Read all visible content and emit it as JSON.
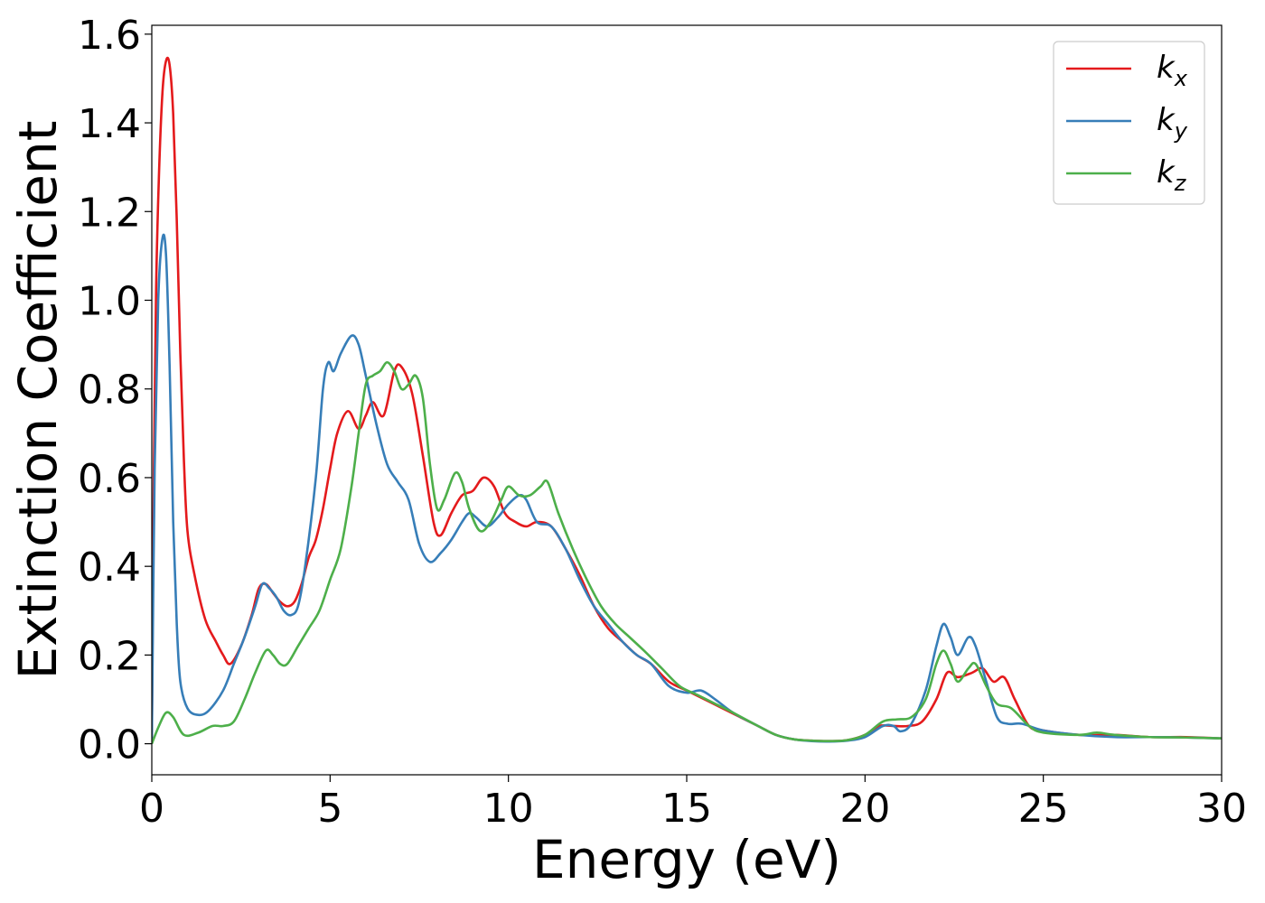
{
  "chart_data": {
    "type": "line",
    "title": "",
    "xlabel": "Energy (eV)",
    "ylabel": "Extinction Coefficient",
    "xlim": [
      0,
      30
    ],
    "ylim": [
      -0.07,
      1.62
    ],
    "x_ticks": [
      "0",
      "5",
      "10",
      "15",
      "20",
      "25",
      "30"
    ],
    "x_tick_values": [
      0,
      5,
      10,
      15,
      20,
      25,
      30
    ],
    "y_ticks": [
      "0.0",
      "0.2",
      "0.4",
      "0.6",
      "0.8",
      "1.0",
      "1.2",
      "1.4",
      "1.6"
    ],
    "y_tick_values": [
      0.0,
      0.2,
      0.4,
      0.6,
      0.8,
      1.0,
      1.2,
      1.4,
      1.6
    ],
    "grid": false,
    "legend_position": "top-right",
    "series": [
      {
        "name": "kx",
        "base": "k",
        "sub": "x",
        "color": "#e41a1c",
        "points": [
          [
            0,
            0
          ],
          [
            0.05,
            0.55
          ],
          [
            0.12,
            1.02
          ],
          [
            0.2,
            1.28
          ],
          [
            0.3,
            1.47
          ],
          [
            0.4,
            1.54
          ],
          [
            0.5,
            1.53
          ],
          [
            0.6,
            1.42
          ],
          [
            0.7,
            1.18
          ],
          [
            0.8,
            0.88
          ],
          [
            0.9,
            0.64
          ],
          [
            1.0,
            0.48
          ],
          [
            1.2,
            0.38
          ],
          [
            1.5,
            0.28
          ],
          [
            1.8,
            0.23
          ],
          [
            2.0,
            0.2
          ],
          [
            2.2,
            0.18
          ],
          [
            2.5,
            0.22
          ],
          [
            2.8,
            0.29
          ],
          [
            3.0,
            0.35
          ],
          [
            3.2,
            0.36
          ],
          [
            3.4,
            0.34
          ],
          [
            3.6,
            0.32
          ],
          [
            3.8,
            0.31
          ],
          [
            4.0,
            0.32
          ],
          [
            4.2,
            0.36
          ],
          [
            4.4,
            0.42
          ],
          [
            4.6,
            0.46
          ],
          [
            4.8,
            0.53
          ],
          [
            5.0,
            0.62
          ],
          [
            5.2,
            0.7
          ],
          [
            5.5,
            0.75
          ],
          [
            5.8,
            0.71
          ],
          [
            6.0,
            0.74
          ],
          [
            6.2,
            0.77
          ],
          [
            6.5,
            0.74
          ],
          [
            6.8,
            0.84
          ],
          [
            7.0,
            0.85
          ],
          [
            7.3,
            0.79
          ],
          [
            7.6,
            0.65
          ],
          [
            7.9,
            0.5
          ],
          [
            8.1,
            0.47
          ],
          [
            8.4,
            0.52
          ],
          [
            8.7,
            0.56
          ],
          [
            9.0,
            0.57
          ],
          [
            9.3,
            0.6
          ],
          [
            9.6,
            0.58
          ],
          [
            9.9,
            0.52
          ],
          [
            10.2,
            0.5
          ],
          [
            10.5,
            0.49
          ],
          [
            10.8,
            0.5
          ],
          [
            11.2,
            0.49
          ],
          [
            11.6,
            0.44
          ],
          [
            12.0,
            0.38
          ],
          [
            12.4,
            0.31
          ],
          [
            12.8,
            0.26
          ],
          [
            13.2,
            0.23
          ],
          [
            13.6,
            0.2
          ],
          [
            14.0,
            0.18
          ],
          [
            14.5,
            0.14
          ],
          [
            15.0,
            0.12
          ],
          [
            15.5,
            0.1
          ],
          [
            16.0,
            0.08
          ],
          [
            16.5,
            0.06
          ],
          [
            17.0,
            0.04
          ],
          [
            17.5,
            0.02
          ],
          [
            18.0,
            0.01
          ],
          [
            18.5,
            0.007
          ],
          [
            19.0,
            0.006
          ],
          [
            19.5,
            0.008
          ],
          [
            20.0,
            0.02
          ],
          [
            20.4,
            0.04
          ],
          [
            20.8,
            0.04
          ],
          [
            21.2,
            0.04
          ],
          [
            21.6,
            0.05
          ],
          [
            22.0,
            0.1
          ],
          [
            22.3,
            0.16
          ],
          [
            22.6,
            0.15
          ],
          [
            23.0,
            0.16
          ],
          [
            23.3,
            0.17
          ],
          [
            23.6,
            0.14
          ],
          [
            23.9,
            0.15
          ],
          [
            24.2,
            0.1
          ],
          [
            24.6,
            0.04
          ],
          [
            25.0,
            0.03
          ],
          [
            26.0,
            0.02
          ],
          [
            27.0,
            0.02
          ],
          [
            28.0,
            0.015
          ],
          [
            29.0,
            0.015
          ],
          [
            30.0,
            0.012
          ]
        ]
      },
      {
        "name": "ky",
        "base": "k",
        "sub": "y",
        "color": "#377eb8",
        "points": [
          [
            0,
            0
          ],
          [
            0.08,
            0.62
          ],
          [
            0.18,
            1.0
          ],
          [
            0.3,
            1.14
          ],
          [
            0.4,
            1.1
          ],
          [
            0.5,
            0.85
          ],
          [
            0.6,
            0.5
          ],
          [
            0.7,
            0.27
          ],
          [
            0.8,
            0.14
          ],
          [
            1.0,
            0.08
          ],
          [
            1.3,
            0.065
          ],
          [
            1.6,
            0.075
          ],
          [
            2.0,
            0.12
          ],
          [
            2.3,
            0.18
          ],
          [
            2.6,
            0.24
          ],
          [
            2.9,
            0.31
          ],
          [
            3.1,
            0.36
          ],
          [
            3.3,
            0.35
          ],
          [
            3.5,
            0.33
          ],
          [
            3.7,
            0.3
          ],
          [
            3.9,
            0.29
          ],
          [
            4.1,
            0.31
          ],
          [
            4.3,
            0.4
          ],
          [
            4.6,
            0.6
          ],
          [
            4.8,
            0.8
          ],
          [
            4.95,
            0.86
          ],
          [
            5.1,
            0.84
          ],
          [
            5.3,
            0.88
          ],
          [
            5.6,
            0.92
          ],
          [
            5.8,
            0.9
          ],
          [
            6.0,
            0.83
          ],
          [
            6.3,
            0.72
          ],
          [
            6.6,
            0.63
          ],
          [
            6.9,
            0.59
          ],
          [
            7.2,
            0.55
          ],
          [
            7.5,
            0.45
          ],
          [
            7.8,
            0.41
          ],
          [
            8.1,
            0.43
          ],
          [
            8.4,
            0.46
          ],
          [
            8.7,
            0.5
          ],
          [
            8.9,
            0.52
          ],
          [
            9.1,
            0.51
          ],
          [
            9.4,
            0.49
          ],
          [
            9.7,
            0.51
          ],
          [
            10.0,
            0.54
          ],
          [
            10.3,
            0.56
          ],
          [
            10.5,
            0.55
          ],
          [
            10.8,
            0.5
          ],
          [
            11.2,
            0.49
          ],
          [
            11.6,
            0.44
          ],
          [
            12.0,
            0.37
          ],
          [
            12.4,
            0.31
          ],
          [
            12.8,
            0.27
          ],
          [
            13.2,
            0.23
          ],
          [
            13.6,
            0.2
          ],
          [
            14.0,
            0.18
          ],
          [
            14.5,
            0.13
          ],
          [
            15.0,
            0.115
          ],
          [
            15.4,
            0.12
          ],
          [
            15.8,
            0.1
          ],
          [
            16.3,
            0.07
          ],
          [
            17.0,
            0.04
          ],
          [
            17.5,
            0.02
          ],
          [
            18.0,
            0.01
          ],
          [
            18.5,
            0.006
          ],
          [
            19.0,
            0.005
          ],
          [
            19.5,
            0.007
          ],
          [
            20.0,
            0.015
          ],
          [
            20.5,
            0.04
          ],
          [
            20.8,
            0.04
          ],
          [
            21.0,
            0.028
          ],
          [
            21.3,
            0.045
          ],
          [
            21.7,
            0.12
          ],
          [
            22.0,
            0.22
          ],
          [
            22.2,
            0.27
          ],
          [
            22.4,
            0.24
          ],
          [
            22.6,
            0.2
          ],
          [
            22.9,
            0.24
          ],
          [
            23.1,
            0.22
          ],
          [
            23.4,
            0.14
          ],
          [
            23.7,
            0.06
          ],
          [
            24.0,
            0.045
          ],
          [
            24.4,
            0.045
          ],
          [
            25.0,
            0.03
          ],
          [
            26.0,
            0.02
          ],
          [
            27.0,
            0.015
          ],
          [
            28.0,
            0.015
          ],
          [
            29.0,
            0.014
          ],
          [
            30.0,
            0.012
          ]
        ]
      },
      {
        "name": "kz",
        "base": "k",
        "sub": "z",
        "color": "#4daf4a",
        "points": [
          [
            0,
            0
          ],
          [
            0.2,
            0.04
          ],
          [
            0.4,
            0.07
          ],
          [
            0.6,
            0.06
          ],
          [
            0.9,
            0.02
          ],
          [
            1.3,
            0.025
          ],
          [
            1.7,
            0.04
          ],
          [
            2.0,
            0.04
          ],
          [
            2.3,
            0.05
          ],
          [
            2.6,
            0.1
          ],
          [
            2.9,
            0.16
          ],
          [
            3.2,
            0.21
          ],
          [
            3.4,
            0.2
          ],
          [
            3.6,
            0.18
          ],
          [
            3.8,
            0.18
          ],
          [
            4.1,
            0.22
          ],
          [
            4.4,
            0.26
          ],
          [
            4.7,
            0.3
          ],
          [
            5.0,
            0.37
          ],
          [
            5.3,
            0.44
          ],
          [
            5.6,
            0.58
          ],
          [
            5.8,
            0.7
          ],
          [
            6.0,
            0.81
          ],
          [
            6.2,
            0.83
          ],
          [
            6.4,
            0.84
          ],
          [
            6.6,
            0.86
          ],
          [
            6.8,
            0.84
          ],
          [
            7.0,
            0.8
          ],
          [
            7.2,
            0.81
          ],
          [
            7.4,
            0.83
          ],
          [
            7.6,
            0.78
          ],
          [
            7.8,
            0.63
          ],
          [
            8.0,
            0.53
          ],
          [
            8.2,
            0.55
          ],
          [
            8.5,
            0.61
          ],
          [
            8.7,
            0.59
          ],
          [
            8.9,
            0.53
          ],
          [
            9.2,
            0.48
          ],
          [
            9.5,
            0.5
          ],
          [
            9.8,
            0.55
          ],
          [
            10.0,
            0.58
          ],
          [
            10.3,
            0.56
          ],
          [
            10.6,
            0.56
          ],
          [
            10.9,
            0.58
          ],
          [
            11.1,
            0.59
          ],
          [
            11.4,
            0.52
          ],
          [
            11.8,
            0.44
          ],
          [
            12.2,
            0.37
          ],
          [
            12.6,
            0.31
          ],
          [
            13.0,
            0.27
          ],
          [
            13.4,
            0.24
          ],
          [
            13.8,
            0.21
          ],
          [
            14.3,
            0.17
          ],
          [
            14.8,
            0.13
          ],
          [
            15.3,
            0.11
          ],
          [
            15.8,
            0.09
          ],
          [
            16.3,
            0.07
          ],
          [
            17.0,
            0.04
          ],
          [
            17.5,
            0.02
          ],
          [
            18.0,
            0.01
          ],
          [
            18.5,
            0.007
          ],
          [
            19.0,
            0.006
          ],
          [
            19.5,
            0.008
          ],
          [
            20.0,
            0.02
          ],
          [
            20.5,
            0.05
          ],
          [
            20.9,
            0.055
          ],
          [
            21.3,
            0.06
          ],
          [
            21.7,
            0.1
          ],
          [
            22.0,
            0.18
          ],
          [
            22.2,
            0.21
          ],
          [
            22.4,
            0.18
          ],
          [
            22.6,
            0.14
          ],
          [
            22.9,
            0.17
          ],
          [
            23.1,
            0.18
          ],
          [
            23.4,
            0.13
          ],
          [
            23.7,
            0.09
          ],
          [
            24.1,
            0.08
          ],
          [
            24.6,
            0.04
          ],
          [
            25.0,
            0.025
          ],
          [
            26.0,
            0.02
          ],
          [
            26.5,
            0.025
          ],
          [
            27.0,
            0.02
          ],
          [
            28.0,
            0.015
          ],
          [
            29.0,
            0.014
          ],
          [
            30.0,
            0.012
          ]
        ]
      }
    ]
  }
}
